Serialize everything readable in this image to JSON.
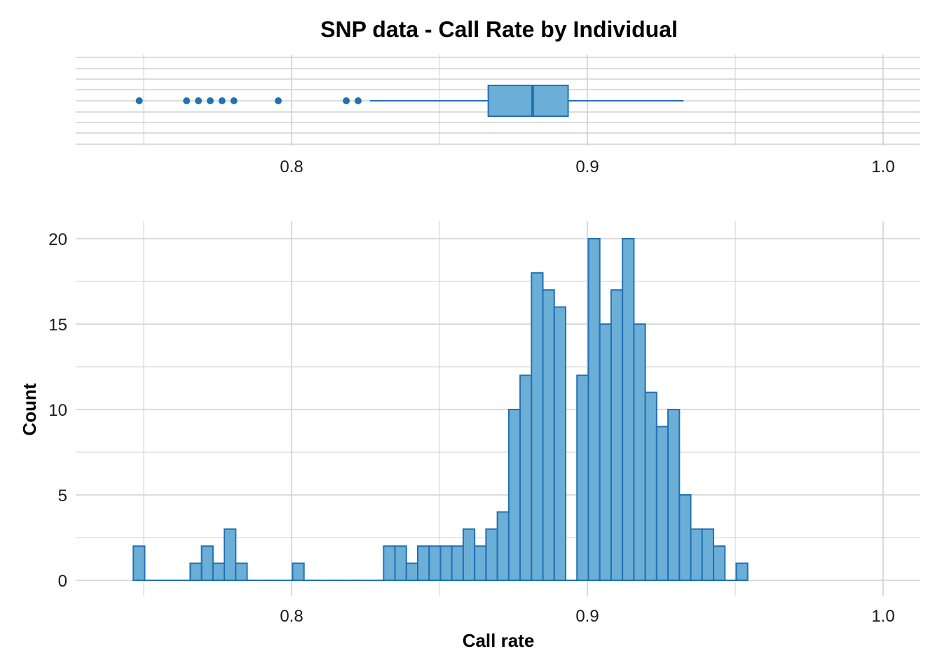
{
  "title": "SNP data - Call Rate by Individual",
  "colors": {
    "fill": "#6baed6",
    "stroke": "#2171b5",
    "grid": "#d0d0d0"
  },
  "chart_data": [
    {
      "type": "boxplot",
      "orientation": "horizontal",
      "xlim": [
        0.73,
        1.01
      ],
      "x_ticks": [
        0.8,
        0.9,
        1.0
      ],
      "x_tick_labels": [
        "0.8",
        "0.9",
        "1.0"
      ],
      "box": {
        "q1": 0.8665,
        "median": 0.8815,
        "q3": 0.8935,
        "whisker_low": 0.8265,
        "whisker_high": 0.9325
      },
      "outliers": [
        0.7485,
        0.7645,
        0.7685,
        0.7725,
        0.7765,
        0.7805,
        0.7955,
        0.8185,
        0.8225
      ]
    },
    {
      "type": "histogram",
      "xlabel": "Call rate",
      "ylabel": "Count",
      "xlim": [
        0.73,
        1.01
      ],
      "ylim": [
        0,
        21
      ],
      "x_ticks": [
        0.8,
        0.9,
        1.0
      ],
      "x_tick_labels": [
        "0.8",
        "0.9",
        "1.0"
      ],
      "y_ticks": [
        0,
        5,
        10,
        15,
        20
      ],
      "y_tick_labels": [
        "0",
        "5",
        "10",
        "15",
        "20"
      ],
      "bin_start": 0.7465,
      "bin_width": 0.0038462,
      "counts": [
        2,
        0,
        0,
        0,
        0,
        1,
        2,
        1,
        3,
        1,
        0,
        0,
        0,
        0,
        1,
        0,
        0,
        0,
        0,
        0,
        0,
        0,
        2,
        2,
        1,
        2,
        2,
        2,
        2,
        3,
        2,
        3,
        4,
        10,
        12,
        18,
        17,
        16,
        0,
        12,
        20,
        15,
        17,
        20,
        15,
        11,
        9,
        10,
        5,
        3,
        3,
        2,
        0,
        1
      ]
    }
  ]
}
